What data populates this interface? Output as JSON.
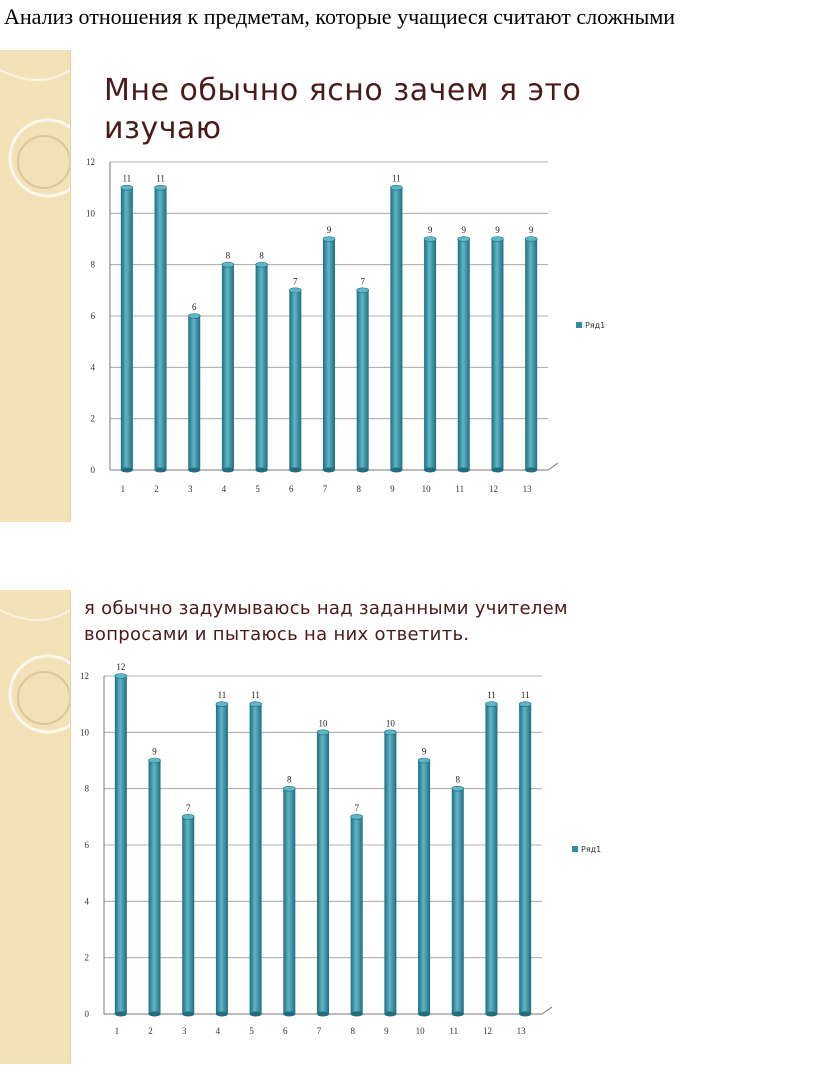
{
  "document": {
    "title": "Анализ отношения к предметам, которые учащиеся считают сложными"
  },
  "colors": {
    "bar": "#2f8fa3",
    "bar_dark": "#1f6d7e",
    "bar_light": "#5fb6c8",
    "slide_strip": "#f3e1b8",
    "title_text": "#4a1a1a"
  },
  "chart_data": [
    {
      "type": "bar",
      "title": "Мне обычно ясно зачем я это изучаю",
      "categories": [
        "1",
        "2",
        "3",
        "4",
        "5",
        "6",
        "7",
        "8",
        "9",
        "10",
        "11",
        "12",
        "13"
      ],
      "series": [
        {
          "name": "Ряд1",
          "values": [
            11,
            11,
            6,
            8,
            8,
            7,
            9,
            7,
            11,
            9,
            9,
            9,
            9
          ]
        }
      ],
      "ylim": [
        0,
        12
      ],
      "yticks": [
        "0",
        "2",
        "4",
        "6",
        "8",
        "10",
        "12"
      ],
      "grid": true,
      "legend": "right"
    },
    {
      "type": "bar",
      "title": "я обычно задумываюсь над заданными учителем вопросами и пытаюсь на них ответить.",
      "categories": [
        "1",
        "2",
        "3",
        "4",
        "5",
        "6",
        "7",
        "8",
        "9",
        "10",
        "11",
        "12",
        "13"
      ],
      "series": [
        {
          "name": "Ряд1",
          "values": [
            12,
            9,
            7,
            11,
            11,
            8,
            10,
            7,
            10,
            9,
            8,
            11,
            11
          ]
        }
      ],
      "ylim": [
        0,
        12
      ],
      "yticks": [
        "0",
        "2",
        "4",
        "6",
        "8",
        "10",
        "12"
      ],
      "grid": true,
      "legend": "right"
    }
  ]
}
